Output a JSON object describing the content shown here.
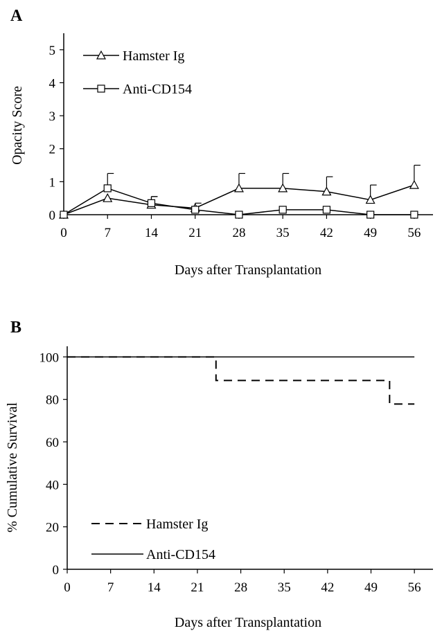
{
  "chart_data": [
    {
      "type": "line",
      "panel_label": "A",
      "xlabel": "Days after Transplantation",
      "ylabel": "Opacity Score",
      "xlim": [
        0,
        59
      ],
      "ylim": [
        0,
        5.5
      ],
      "x_ticks": [
        0,
        7,
        14,
        21,
        28,
        35,
        42,
        49,
        56
      ],
      "y_ticks": [
        0,
        1,
        2,
        3,
        4,
        5
      ],
      "grid": false,
      "legend_position": "top-left",
      "series": [
        {
          "name": "Hamster Ig",
          "marker": "triangle",
          "x": [
            0,
            7,
            14,
            21,
            28,
            35,
            42,
            49,
            56
          ],
          "y": [
            0,
            0.5,
            0.3,
            0.2,
            0.8,
            0.8,
            0.7,
            0.45,
            0.9
          ],
          "error": [
            0,
            0,
            0.25,
            0.15,
            0.45,
            0.45,
            0.45,
            0.45,
            0.6
          ]
        },
        {
          "name": "Anti-CD154",
          "marker": "square",
          "x": [
            0,
            7,
            14,
            21,
            28,
            35,
            42,
            49,
            56
          ],
          "y": [
            0,
            0.8,
            0.35,
            0.15,
            0,
            0.15,
            0.15,
            0,
            0
          ],
          "error": [
            0,
            0.45,
            0.2,
            0,
            0,
            0,
            0,
            0,
            0
          ]
        }
      ]
    },
    {
      "type": "line",
      "panel_label": "B",
      "xlabel": "Days after Transplantation",
      "ylabel": "% Cumulative Survival",
      "xlim": [
        0,
        59
      ],
      "ylim": [
        0,
        105
      ],
      "x_ticks": [
        0,
        7,
        14,
        21,
        28,
        35,
        42,
        49,
        56
      ],
      "y_ticks": [
        0,
        20,
        40,
        60,
        80,
        100
      ],
      "grid": false,
      "legend_position": "bottom-left",
      "series": [
        {
          "name": "Hamster Ig",
          "style": "dashed",
          "step": true,
          "x": [
            0,
            24,
            24,
            52,
            52,
            56
          ],
          "y": [
            100,
            100,
            88.9,
            88.9,
            77.8,
            77.8
          ]
        },
        {
          "name": "Anti-CD154",
          "style": "solid",
          "step": true,
          "x": [
            0,
            56
          ],
          "y": [
            100,
            100
          ]
        }
      ]
    }
  ]
}
